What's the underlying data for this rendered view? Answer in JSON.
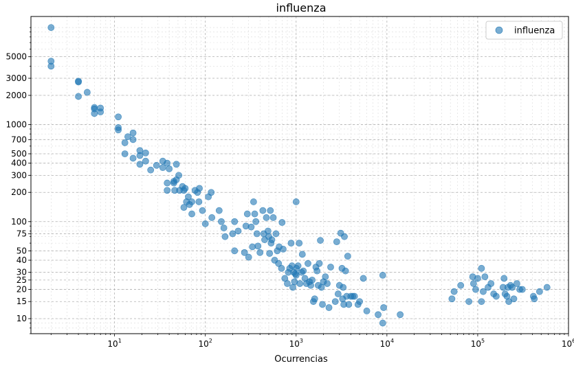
{
  "chart_data": {
    "type": "scatter",
    "title": "influenza",
    "xlabel": "Ocurrencias",
    "ylabel": "",
    "xscale": "log",
    "yscale": "log",
    "xlim": [
      1.2,
      1000000
    ],
    "ylim": [
      7,
      13000
    ],
    "grid": true,
    "legend": {
      "placement": "top-right",
      "entries": [
        "influenza"
      ]
    },
    "x_ticks": [
      {
        "value": 10,
        "base": "10",
        "exp": "1"
      },
      {
        "value": 100,
        "base": "10",
        "exp": "2"
      },
      {
        "value": 1000,
        "base": "10",
        "exp": "3"
      },
      {
        "value": 10000,
        "base": "10",
        "exp": "4"
      },
      {
        "value": 100000,
        "base": "10",
        "exp": "5"
      },
      {
        "value": 1000000,
        "base": "10",
        "exp": "6"
      }
    ],
    "y_ticks": [
      {
        "value": 10,
        "label": "10"
      },
      {
        "value": 15,
        "label": "15"
      },
      {
        "value": 20,
        "label": "20"
      },
      {
        "value": 25,
        "label": "25"
      },
      {
        "value": 30,
        "label": "30"
      },
      {
        "value": 40,
        "label": "40"
      },
      {
        "value": 50,
        "label": "50"
      },
      {
        "value": 75,
        "label": "75"
      },
      {
        "value": 100,
        "label": "100"
      },
      {
        "value": 200,
        "label": "200"
      },
      {
        "value": 300,
        "label": "300"
      },
      {
        "value": 400,
        "label": "400"
      },
      {
        "value": 500,
        "label": "500"
      },
      {
        "value": 700,
        "label": "700"
      },
      {
        "value": 1000,
        "label": "1000"
      },
      {
        "value": 2000,
        "label": "2000"
      },
      {
        "value": 3000,
        "label": "3000"
      },
      {
        "value": 5000,
        "label": "5000"
      }
    ],
    "series": [
      {
        "name": "influenza",
        "color": "#1f77b4",
        "points": [
          [
            2,
            10000
          ],
          [
            2,
            4500
          ],
          [
            2,
            4000
          ],
          [
            4,
            2800
          ],
          [
            4,
            2750
          ],
          [
            4,
            1950
          ],
          [
            5,
            2150
          ],
          [
            6,
            1500
          ],
          [
            6,
            1450
          ],
          [
            6,
            1300
          ],
          [
            7,
            1480
          ],
          [
            7,
            1350
          ],
          [
            11,
            1200
          ],
          [
            11,
            930
          ],
          [
            11,
            880
          ],
          [
            13,
            650
          ],
          [
            13,
            500
          ],
          [
            14,
            750
          ],
          [
            16,
            820
          ],
          [
            16,
            700
          ],
          [
            16,
            450
          ],
          [
            19,
            540
          ],
          [
            19,
            480
          ],
          [
            19,
            390
          ],
          [
            22,
            510
          ],
          [
            22,
            420
          ],
          [
            25,
            340
          ],
          [
            29,
            380
          ],
          [
            34,
            420
          ],
          [
            34,
            360
          ],
          [
            38,
            400
          ],
          [
            38,
            250
          ],
          [
            38,
            210
          ],
          [
            40,
            350
          ],
          [
            45,
            260
          ],
          [
            45,
            250
          ],
          [
            46,
            210
          ],
          [
            48,
            390
          ],
          [
            48,
            270
          ],
          [
            51,
            300
          ],
          [
            52,
            210
          ],
          [
            56,
            230
          ],
          [
            58,
            140
          ],
          [
            58,
            210
          ],
          [
            60,
            220
          ],
          [
            62,
            160
          ],
          [
            65,
            180
          ],
          [
            67,
            150
          ],
          [
            71,
            160
          ],
          [
            71,
            120
          ],
          [
            77,
            210
          ],
          [
            82,
            200
          ],
          [
            85,
            160
          ],
          [
            86,
            220
          ],
          [
            93,
            130
          ],
          [
            100,
            95
          ],
          [
            108,
            180
          ],
          [
            116,
            200
          ],
          [
            118,
            110
          ],
          [
            142,
            130
          ],
          [
            150,
            100
          ],
          [
            160,
            86
          ],
          [
            165,
            70
          ],
          [
            200,
            75
          ],
          [
            210,
            100
          ],
          [
            210,
            50
          ],
          [
            230,
            80
          ],
          [
            270,
            48
          ],
          [
            280,
            90
          ],
          [
            290,
            120
          ],
          [
            300,
            43
          ],
          [
            320,
            88
          ],
          [
            330,
            55
          ],
          [
            340,
            160
          ],
          [
            350,
            120
          ],
          [
            360,
            100
          ],
          [
            370,
            75
          ],
          [
            380,
            56
          ],
          [
            400,
            48
          ],
          [
            430,
            130
          ],
          [
            440,
            75
          ],
          [
            450,
            65
          ],
          [
            470,
            110
          ],
          [
            490,
            80
          ],
          [
            500,
            70
          ],
          [
            510,
            47
          ],
          [
            520,
            130
          ],
          [
            530,
            60
          ],
          [
            540,
            65
          ],
          [
            560,
            110
          ],
          [
            580,
            40
          ],
          [
            600,
            75
          ],
          [
            620,
            50
          ],
          [
            640,
            37
          ],
          [
            650,
            55
          ],
          [
            690,
            33
          ],
          [
            700,
            98
          ],
          [
            720,
            52
          ],
          [
            750,
            26
          ],
          [
            800,
            23
          ],
          [
            820,
            30
          ],
          [
            850,
            33
          ],
          [
            880,
            60
          ],
          [
            900,
            35
          ],
          [
            920,
            21
          ],
          [
            940,
            30
          ],
          [
            960,
            24
          ],
          [
            980,
            29
          ],
          [
            1000,
            28
          ],
          [
            1000,
            160
          ],
          [
            1010,
            33
          ],
          [
            1050,
            35
          ],
          [
            1080,
            60
          ],
          [
            1100,
            23
          ],
          [
            1150,
            30
          ],
          [
            1170,
            46
          ],
          [
            1200,
            31
          ],
          [
            1250,
            26
          ],
          [
            1300,
            23
          ],
          [
            1350,
            37
          ],
          [
            1400,
            24
          ],
          [
            1450,
            22
          ],
          [
            1500,
            25
          ],
          [
            1550,
            15
          ],
          [
            1600,
            16
          ],
          [
            1650,
            34
          ],
          [
            1700,
            31
          ],
          [
            1750,
            22
          ],
          [
            1800,
            37
          ],
          [
            1850,
            64
          ],
          [
            1900,
            21
          ],
          [
            1950,
            14
          ],
          [
            2000,
            24
          ],
          [
            2100,
            27
          ],
          [
            2200,
            23
          ],
          [
            2300,
            13
          ],
          [
            2400,
            34
          ],
          [
            2700,
            15
          ],
          [
            2800,
            62
          ],
          [
            2900,
            18
          ],
          [
            3000,
            22
          ],
          [
            3100,
            76
          ],
          [
            3200,
            33
          ],
          [
            3250,
            16
          ],
          [
            3300,
            21
          ],
          [
            3350,
            14
          ],
          [
            3400,
            70
          ],
          [
            3500,
            31
          ],
          [
            3600,
            17
          ],
          [
            3700,
            44
          ],
          [
            3800,
            14
          ],
          [
            4000,
            17
          ],
          [
            4200,
            17
          ],
          [
            4400,
            17
          ],
          [
            4800,
            14
          ],
          [
            5000,
            15
          ],
          [
            5500,
            26
          ],
          [
            6000,
            12
          ],
          [
            8000,
            11
          ],
          [
            9000,
            9
          ],
          [
            9000,
            28
          ],
          [
            9200,
            13
          ],
          [
            14000,
            11
          ],
          [
            52000,
            16
          ],
          [
            55000,
            19
          ],
          [
            65000,
            22
          ],
          [
            80000,
            15
          ],
          [
            88000,
            27
          ],
          [
            90000,
            23
          ],
          [
            95000,
            20
          ],
          [
            100000,
            26
          ],
          [
            110000,
            15
          ],
          [
            110000,
            33
          ],
          [
            115000,
            19
          ],
          [
            120000,
            27
          ],
          [
            130000,
            21
          ],
          [
            140000,
            23
          ],
          [
            150000,
            18
          ],
          [
            160000,
            17
          ],
          [
            190000,
            21
          ],
          [
            195000,
            26
          ],
          [
            200000,
            18
          ],
          [
            210000,
            17
          ],
          [
            215000,
            21
          ],
          [
            220000,
            15
          ],
          [
            230000,
            22
          ],
          [
            240000,
            21
          ],
          [
            250000,
            16
          ],
          [
            270000,
            23
          ],
          [
            290000,
            20
          ],
          [
            310000,
            20
          ],
          [
            410000,
            17
          ],
          [
            420000,
            16
          ],
          [
            480000,
            19
          ],
          [
            580000,
            21
          ]
        ]
      }
    ]
  }
}
